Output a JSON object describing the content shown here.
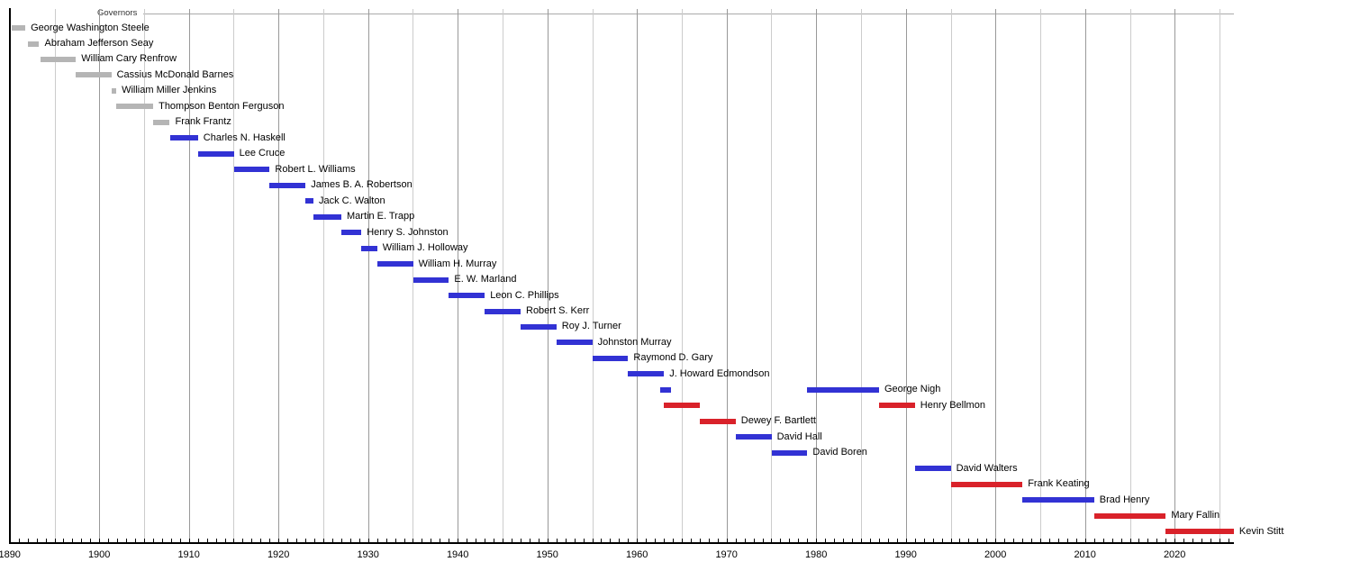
{
  "chart_data": {
    "type": "bar",
    "subtype": "gantt-timeline",
    "title": "Governors",
    "axis": {
      "unit": "year",
      "min": 1890,
      "max": 2026.6,
      "tick_step": 1,
      "grid_step": 5,
      "label_step": 10,
      "tick_labels": [
        "1890",
        "1900",
        "1910",
        "1920",
        "1930",
        "1940",
        "1950",
        "1960",
        "1970",
        "1980",
        "1990",
        "2000",
        "2010",
        "2020"
      ],
      "grid": "on",
      "legend": "none"
    },
    "colors": {
      "territorial": "#b5b5b5",
      "democratic": "#3232d4",
      "republican": "#d9222a",
      "grid_minor": "#cccccc",
      "grid_major": "#999999",
      "axis": "#000000",
      "top_rule": "#aaaaaa"
    },
    "governors": [
      {
        "name": "George Washington Steele",
        "party": "territorial",
        "terms": [
          [
            1890.25,
            1891.75
          ]
        ]
      },
      {
        "name": "Abraham Jefferson Seay",
        "party": "territorial",
        "terms": [
          [
            1892.05,
            1893.3
          ]
        ]
      },
      {
        "name": "William Cary Renfrow",
        "party": "territorial",
        "terms": [
          [
            1893.4,
            1897.4
          ]
        ]
      },
      {
        "name": "Cassius McDonald Barnes",
        "party": "territorial",
        "terms": [
          [
            1897.4,
            1901.35
          ]
        ]
      },
      {
        "name": "William Miller Jenkins",
        "party": "territorial",
        "terms": [
          [
            1901.35,
            1901.9
          ]
        ]
      },
      {
        "name": "Thompson Benton Ferguson",
        "party": "territorial",
        "terms": [
          [
            1901.9,
            1906.02
          ]
        ]
      },
      {
        "name": "Frank Frantz",
        "party": "territorial",
        "terms": [
          [
            1906.02,
            1907.87
          ]
        ]
      },
      {
        "name": "Charles N. Haskell",
        "party": "democratic",
        "terms": [
          [
            1907.87,
            1911.02
          ]
        ]
      },
      {
        "name": "Lee Cruce",
        "party": "democratic",
        "terms": [
          [
            1911.02,
            1915.02
          ]
        ]
      },
      {
        "name": "Robert L. Williams",
        "party": "democratic",
        "terms": [
          [
            1915.02,
            1919.02
          ]
        ]
      },
      {
        "name": "James B. A. Robertson",
        "party": "democratic",
        "terms": [
          [
            1919.02,
            1923.02
          ]
        ]
      },
      {
        "name": "Jack C. Walton",
        "party": "democratic",
        "terms": [
          [
            1923.02,
            1923.9
          ]
        ]
      },
      {
        "name": "Martin E. Trapp",
        "party": "democratic",
        "terms": [
          [
            1923.9,
            1927.02
          ]
        ]
      },
      {
        "name": "Henry S. Johnston",
        "party": "democratic",
        "terms": [
          [
            1927.02,
            1929.25
          ]
        ]
      },
      {
        "name": "William J. Holloway",
        "party": "democratic",
        "terms": [
          [
            1929.25,
            1931.02
          ]
        ]
      },
      {
        "name": "William H. Murray",
        "party": "democratic",
        "terms": [
          [
            1931.02,
            1935.02
          ]
        ]
      },
      {
        "name": "E. W. Marland",
        "party": "democratic",
        "terms": [
          [
            1935.02,
            1939.02
          ]
        ]
      },
      {
        "name": "Leon C. Phillips",
        "party": "democratic",
        "terms": [
          [
            1939.02,
            1943.02
          ]
        ]
      },
      {
        "name": "Robert S. Kerr",
        "party": "democratic",
        "terms": [
          [
            1943.02,
            1947.02
          ]
        ]
      },
      {
        "name": "Roy J. Turner",
        "party": "democratic",
        "terms": [
          [
            1947.02,
            1951.02
          ]
        ]
      },
      {
        "name": "Johnston Murray",
        "party": "democratic",
        "terms": [
          [
            1951.02,
            1955.02
          ]
        ]
      },
      {
        "name": "Raymond D. Gary",
        "party": "democratic",
        "terms": [
          [
            1955.02,
            1959.02
          ]
        ]
      },
      {
        "name": "J. Howard Edmondson",
        "party": "democratic",
        "terms": [
          [
            1959.02,
            1963.02
          ]
        ]
      },
      {
        "name": "George Nigh",
        "party": "democratic",
        "terms": [
          [
            1962.6,
            1963.85
          ],
          [
            1979.02,
            1987.02
          ]
        ]
      },
      {
        "name": "Henry Bellmon",
        "party": "republican",
        "terms": [
          [
            1963.02,
            1967.02
          ],
          [
            1987.02,
            1991.02
          ]
        ]
      },
      {
        "name": "Dewey F. Bartlett",
        "party": "republican",
        "terms": [
          [
            1967.02,
            1971.02
          ]
        ]
      },
      {
        "name": "David Hall",
        "party": "democratic",
        "terms": [
          [
            1971.02,
            1975.02
          ]
        ]
      },
      {
        "name": "David Boren",
        "party": "democratic",
        "terms": [
          [
            1975.02,
            1979.02
          ]
        ]
      },
      {
        "name": "David Walters",
        "party": "democratic",
        "terms": [
          [
            1991.02,
            1995.02
          ]
        ]
      },
      {
        "name": "Frank Keating",
        "party": "republican",
        "terms": [
          [
            1995.02,
            2003.02
          ]
        ]
      },
      {
        "name": "Brad Henry",
        "party": "democratic",
        "terms": [
          [
            2003.02,
            2011.02
          ]
        ]
      },
      {
        "name": "Mary Fallin",
        "party": "republican",
        "terms": [
          [
            2011.02,
            2019.02
          ]
        ]
      },
      {
        "name": "Kevin Stitt",
        "party": "republican",
        "terms": [
          [
            2019.02,
            2026.6
          ]
        ]
      }
    ]
  }
}
